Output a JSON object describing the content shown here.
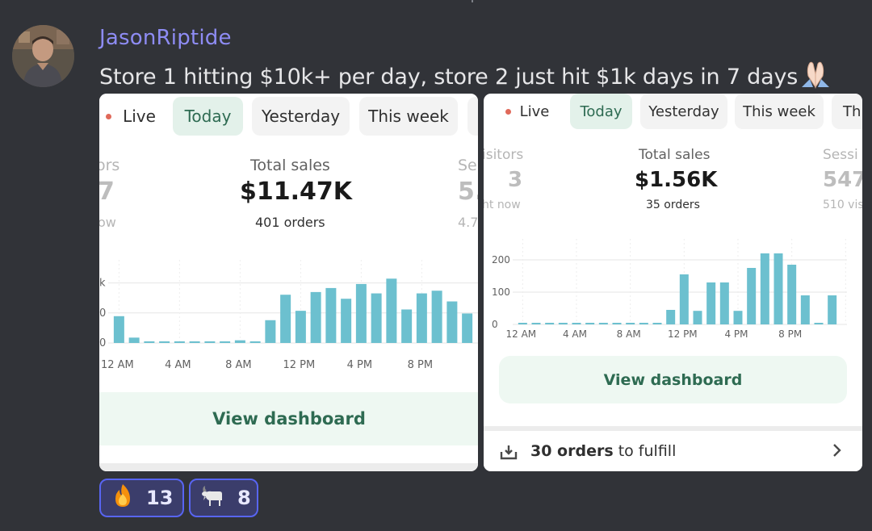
{
  "message": {
    "username": "JasonRiptide",
    "text": "Store 1 hitting $10k+ per day, store 2 just hit $1k days in 7 days",
    "emoji": "folded-hands"
  },
  "store1": {
    "tabs": [
      "Live",
      "Today",
      "Yesterday",
      "This week"
    ],
    "active_tab": "Today",
    "left_metric": {
      "label": "ors",
      "value": "7",
      "sub": "ow"
    },
    "center_metric": {
      "label": "Total sales",
      "value": "$11.47K",
      "sub": "401 orders"
    },
    "right_metric": {
      "label": "Se",
      "value": "5.",
      "sub": "4.7"
    },
    "button": "View dashboard",
    "accent": "#6cc0cf"
  },
  "store2": {
    "tabs": [
      "Live",
      "Today",
      "Yesterday",
      "This week",
      "Thi"
    ],
    "active_tab": "Today",
    "left_metric": {
      "label": "isitors",
      "value": "3",
      "sub": "ht now"
    },
    "center_metric": {
      "label": "Total sales",
      "value": "$1.56K",
      "sub": "35 orders"
    },
    "right_metric": {
      "label": "Sessi",
      "value": "547",
      "sub": "510 vis"
    },
    "button": "View dashboard",
    "fulfill": {
      "count": "30 orders",
      "rest": " to fulfill"
    },
    "accent": "#6cc0cf"
  },
  "chart_data": [
    {
      "type": "bar",
      "categories": [
        "12 AM",
        "1 AM",
        "2 AM",
        "3 AM",
        "4 AM",
        "5 AM",
        "6 AM",
        "7 AM",
        "8 AM",
        "9 AM",
        "10 AM",
        "11 AM",
        "12 PM",
        "1 PM",
        "2 PM",
        "3 PM",
        "4 PM",
        "5 PM",
        "6 PM",
        "7 PM",
        "8 PM",
        "9 PM",
        "10 PM",
        "11 PM"
      ],
      "values": [
        200,
        40,
        8,
        8,
        8,
        8,
        8,
        8,
        20,
        -10,
        170,
        360,
        240,
        380,
        410,
        330,
        440,
        370,
        480,
        250,
        370,
        390,
        310,
        220
      ],
      "ytick_labels": [
        "k",
        "0",
        "0"
      ],
      "xtick_labels": [
        "12 AM",
        "4 AM",
        "8 AM",
        "12 PM",
        "4 PM",
        "8 PM"
      ],
      "ylim": [
        -20,
        560
      ]
    },
    {
      "type": "bar",
      "categories": [
        "12 AM",
        "1 AM",
        "2 AM",
        "3 AM",
        "4 AM",
        "5 AM",
        "6 AM",
        "7 AM",
        "8 AM",
        "9 AM",
        "10 AM",
        "11 AM",
        "12 PM",
        "1 PM",
        "2 PM",
        "3 PM",
        "4 PM",
        "5 PM",
        "6 PM",
        "7 PM",
        "8 PM",
        "9 PM",
        "10 PM",
        "11 PM"
      ],
      "values": [
        2,
        2,
        2,
        2,
        2,
        2,
        2,
        2,
        2,
        2,
        2,
        45,
        155,
        42,
        130,
        130,
        42,
        175,
        220,
        220,
        185,
        90,
        5,
        90
      ],
      "ytick_labels": [
        "200",
        "100",
        "0"
      ],
      "ytick_values": [
        200,
        100,
        0
      ],
      "xtick_labels": [
        "12 AM",
        "4 AM",
        "8 AM",
        "12 PM",
        "4 PM",
        "8 PM"
      ],
      "ylim": [
        0,
        240
      ]
    }
  ]
}
